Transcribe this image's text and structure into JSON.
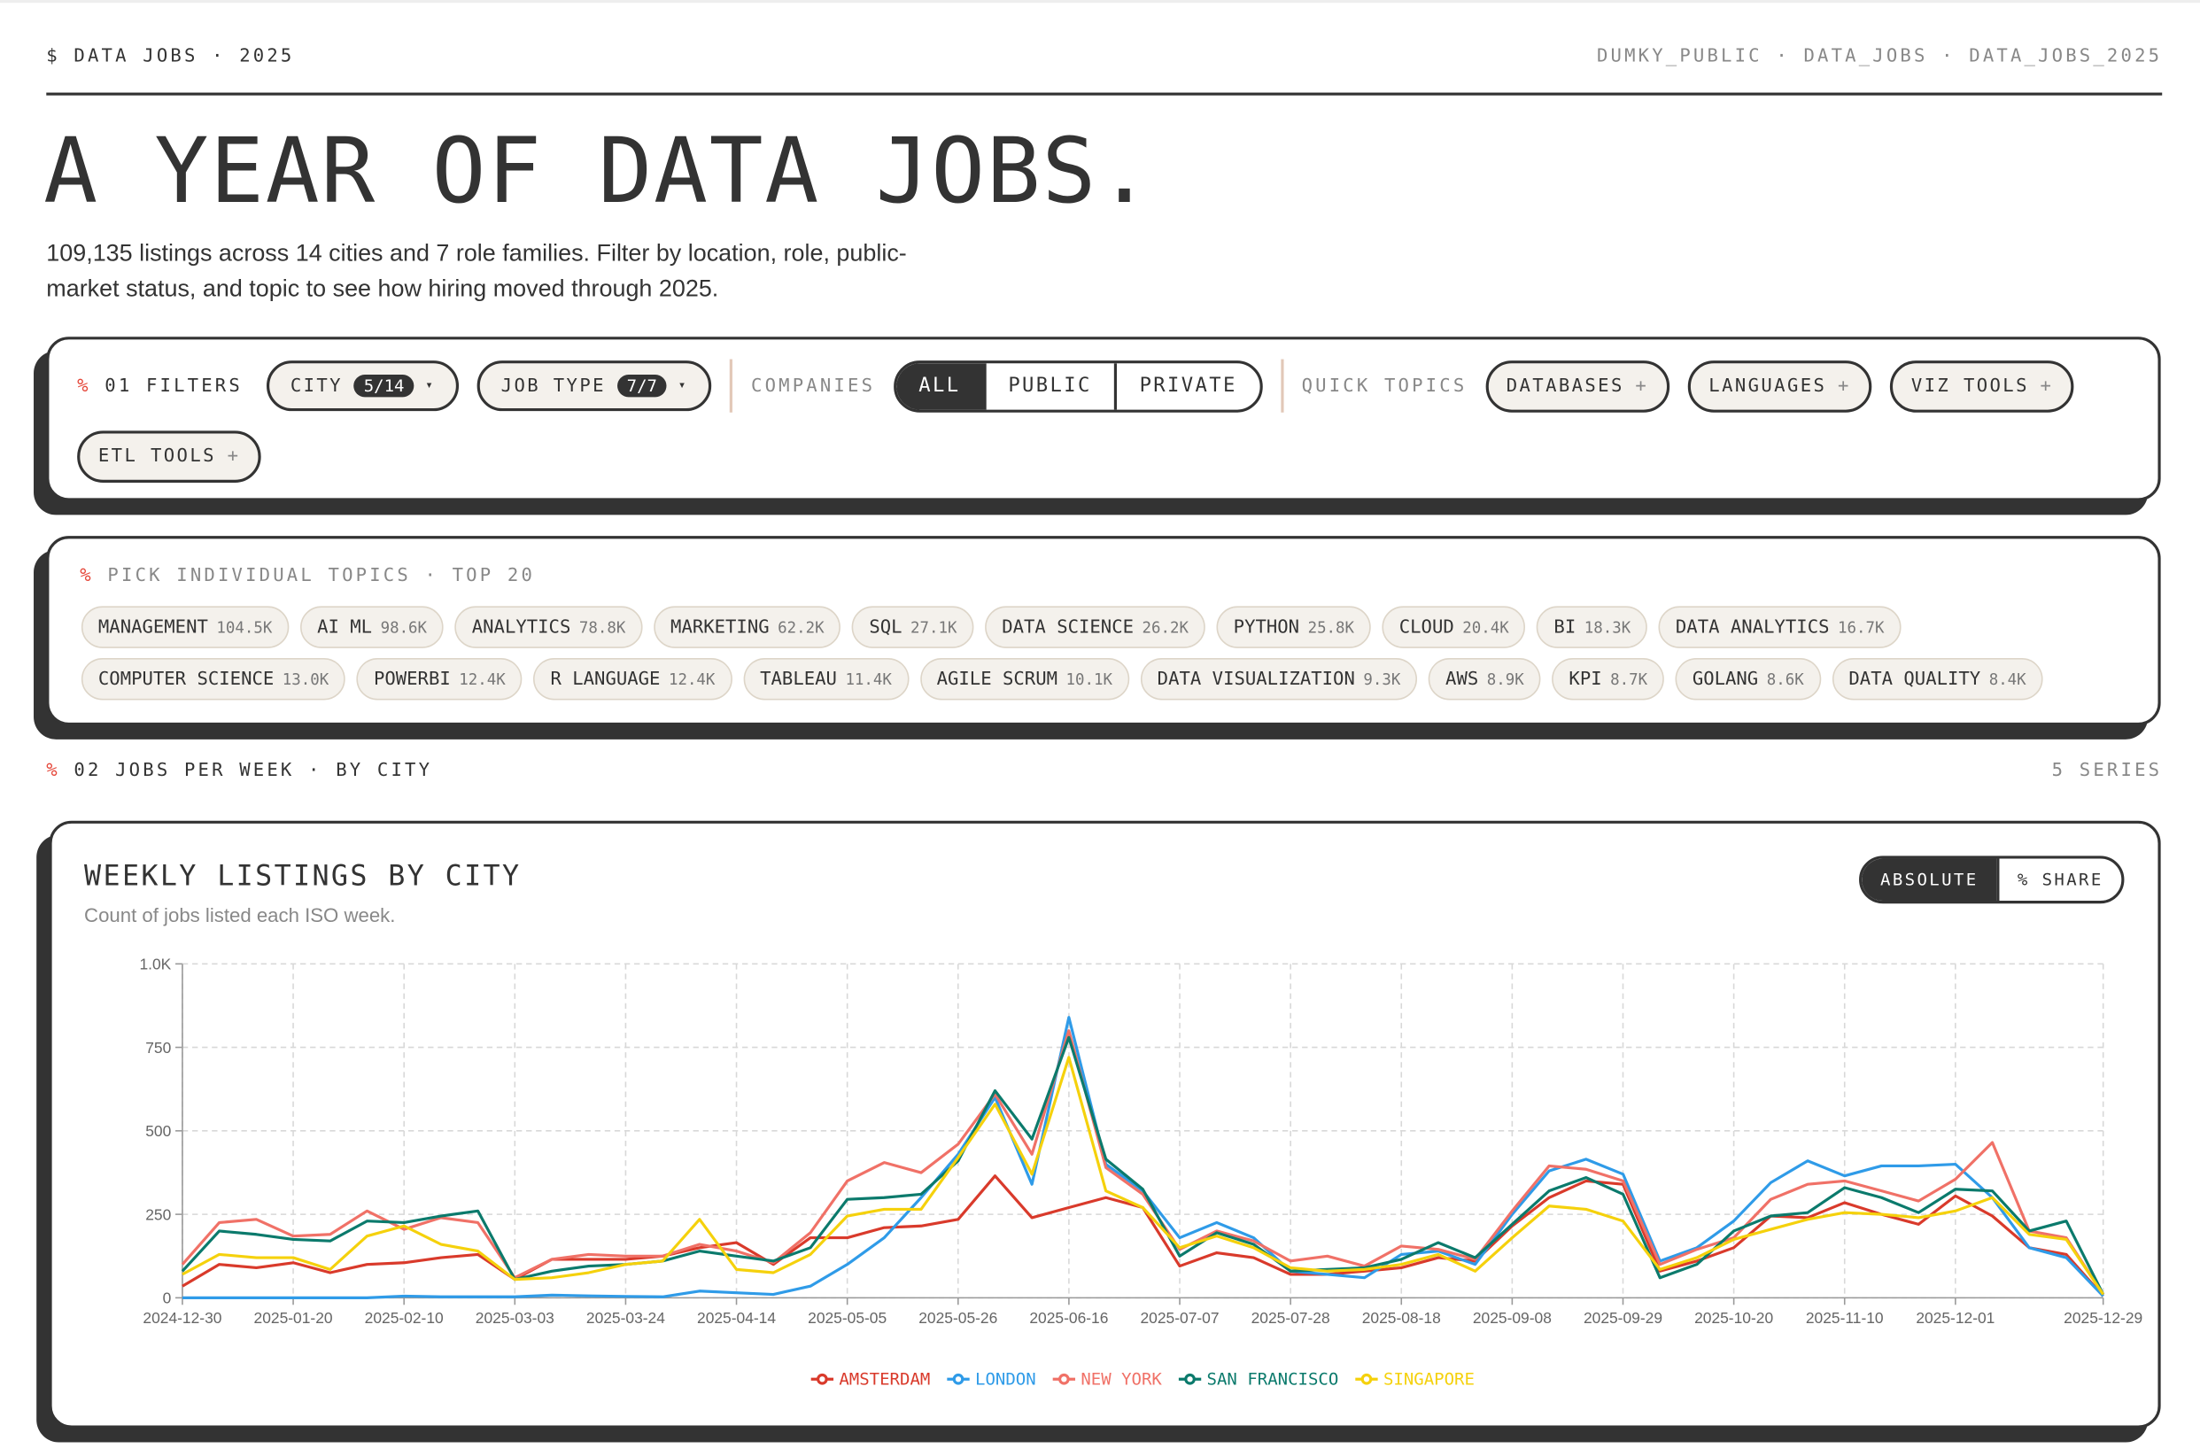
{
  "header": {
    "left": "$ DATA JOBS · 2025",
    "right": "DUMKY_PUBLIC · DATA_JOBS · DATA_JOBS_2025",
    "title": "A YEAR OF DATA JOBS.",
    "subtitle": "109,135 listings across 14 cities and 7 role families. Filter by location, role, public-market status, and topic to see how hiring moved through 2025."
  },
  "marker": "%",
  "add_icon": "+",
  "dropdown_icon": "▾",
  "filters": {
    "label": "01 FILTERS",
    "city": {
      "label": "CITY",
      "badge": "5/14"
    },
    "job_type": {
      "label": "JOB TYPE",
      "badge": "7/7"
    },
    "companies_label": "COMPANIES",
    "companies": [
      "ALL",
      "PUBLIC",
      "PRIVATE"
    ],
    "quick_topics_label": "QUICK TOPICS",
    "quick_topics": [
      "DATABASES",
      "LANGUAGES",
      "VIZ TOOLS",
      "ETL TOOLS"
    ]
  },
  "topics": {
    "label": "PICK INDIVIDUAL TOPICS · TOP 20",
    "items": [
      {
        "name": "MANAGEMENT",
        "count": "104.5K"
      },
      {
        "name": "AI ML",
        "count": "98.6K"
      },
      {
        "name": "ANALYTICS",
        "count": "78.8K"
      },
      {
        "name": "MARKETING",
        "count": "62.2K"
      },
      {
        "name": "SQL",
        "count": "27.1K"
      },
      {
        "name": "DATA SCIENCE",
        "count": "26.2K"
      },
      {
        "name": "PYTHON",
        "count": "25.8K"
      },
      {
        "name": "CLOUD",
        "count": "20.4K"
      },
      {
        "name": "BI",
        "count": "18.3K"
      },
      {
        "name": "DATA ANALYTICS",
        "count": "16.7K"
      },
      {
        "name": "COMPUTER SCIENCE",
        "count": "13.0K"
      },
      {
        "name": "POWERBI",
        "count": "12.4K"
      },
      {
        "name": "R LANGUAGE",
        "count": "12.4K"
      },
      {
        "name": "TABLEAU",
        "count": "11.4K"
      },
      {
        "name": "AGILE SCRUM",
        "count": "10.1K"
      },
      {
        "name": "DATA VISUALIZATION",
        "count": "9.3K"
      },
      {
        "name": "AWS",
        "count": "8.9K"
      },
      {
        "name": "KPI",
        "count": "8.7K"
      },
      {
        "name": "GOLANG",
        "count": "8.6K"
      },
      {
        "name": "DATA QUALITY",
        "count": "8.4K"
      }
    ]
  },
  "section": {
    "label": "02 JOBS PER WEEK · BY CITY",
    "right": "5 SERIES"
  },
  "toggle": [
    "ABSOLUTE",
    "% SHARE"
  ],
  "chart_data": {
    "type": "line",
    "title": "WEEKLY LISTINGS BY CITY",
    "subtitle": "Count of jobs listed each ISO week.",
    "x": [
      "2024-12-30",
      "2025-01-06",
      "2025-01-13",
      "2025-01-20",
      "2025-01-27",
      "2025-02-03",
      "2025-02-10",
      "2025-02-17",
      "2025-02-24",
      "2025-03-03",
      "2025-03-10",
      "2025-03-17",
      "2025-03-24",
      "2025-03-31",
      "2025-04-07",
      "2025-04-14",
      "2025-04-21",
      "2025-04-28",
      "2025-05-05",
      "2025-05-12",
      "2025-05-19",
      "2025-05-26",
      "2025-06-02",
      "2025-06-09",
      "2025-06-16",
      "2025-06-23",
      "2025-06-30",
      "2025-07-07",
      "2025-07-14",
      "2025-07-21",
      "2025-07-28",
      "2025-08-04",
      "2025-08-11",
      "2025-08-18",
      "2025-08-25",
      "2025-09-01",
      "2025-09-08",
      "2025-09-15",
      "2025-09-22",
      "2025-09-29",
      "2025-10-06",
      "2025-10-13",
      "2025-10-20",
      "2025-10-27",
      "2025-11-03",
      "2025-11-10",
      "2025-11-17",
      "2025-11-24",
      "2025-12-01",
      "2025-12-08",
      "2025-12-15",
      "2025-12-22",
      "2025-12-29"
    ],
    "xlim": [
      "2024-12-30",
      "2025-12-29"
    ],
    "xticks": [
      "2024-12-30",
      "2025-01-20",
      "2025-02-10",
      "2025-03-03",
      "2025-03-24",
      "2025-04-14",
      "2025-05-05",
      "2025-05-26",
      "2025-06-16",
      "2025-07-07",
      "2025-07-28",
      "2025-08-18",
      "2025-09-08",
      "2025-09-29",
      "2025-10-20",
      "2025-11-10",
      "2025-12-01",
      "2025-12-29"
    ],
    "ylim": [
      0,
      1000
    ],
    "yticks": [
      0,
      250,
      500,
      750,
      {
        "value": 1000,
        "label": "1.0K"
      }
    ],
    "grid": true,
    "series": [
      {
        "name": "AMSTERDAM",
        "color": "#d93a2b",
        "values": [
          35,
          100,
          90,
          105,
          75,
          100,
          105,
          120,
          130,
          55,
          115,
          115,
          115,
          125,
          150,
          165,
          100,
          180,
          180,
          210,
          215,
          235,
          365,
          240,
          270,
          300,
          270,
          95,
          135,
          120,
          70,
          70,
          80,
          90,
          120,
          110,
          215,
          300,
          350,
          340,
          80,
          110,
          150,
          245,
          240,
          285,
          250,
          220,
          305,
          245,
          150,
          130,
          5
        ]
      },
      {
        "name": "LONDON",
        "color": "#2f9be8",
        "values": [
          0,
          0,
          0,
          0,
          0,
          0,
          5,
          3,
          3,
          3,
          8,
          6,
          4,
          3,
          20,
          15,
          10,
          35,
          100,
          180,
          300,
          430,
          600,
          340,
          840,
          400,
          320,
          180,
          225,
          180,
          80,
          70,
          60,
          130,
          140,
          100,
          250,
          380,
          415,
          370,
          110,
          150,
          230,
          345,
          410,
          365,
          395,
          395,
          400,
          300,
          150,
          120,
          5
        ]
      },
      {
        "name": "NEW YORK",
        "color": "#f07167",
        "values": [
          100,
          225,
          235,
          185,
          190,
          260,
          205,
          240,
          225,
          60,
          115,
          130,
          125,
          125,
          160,
          140,
          105,
          195,
          350,
          405,
          375,
          460,
          610,
          430,
          800,
          390,
          310,
          145,
          200,
          170,
          110,
          125,
          95,
          155,
          145,
          115,
          260,
          395,
          385,
          350,
          100,
          145,
          180,
          295,
          340,
          350,
          320,
          290,
          355,
          465,
          200,
          180,
          10
        ]
      },
      {
        "name": "SAN FRANCISCO",
        "color": "#0b7a6c",
        "values": [
          80,
          200,
          190,
          175,
          170,
          230,
          225,
          245,
          260,
          55,
          80,
          95,
          100,
          110,
          140,
          125,
          110,
          150,
          295,
          300,
          310,
          410,
          620,
          475,
          780,
          415,
          325,
          125,
          195,
          160,
          80,
          85,
          90,
          115,
          165,
          120,
          220,
          320,
          360,
          310,
          60,
          100,
          200,
          245,
          255,
          330,
          300,
          255,
          325,
          320,
          200,
          230,
          10
        ]
      },
      {
        "name": "SINGAPORE",
        "color": "#f5d10c",
        "values": [
          70,
          130,
          120,
          120,
          85,
          185,
          215,
          160,
          140,
          55,
          60,
          75,
          100,
          110,
          235,
          85,
          75,
          130,
          245,
          265,
          265,
          420,
          580,
          370,
          720,
          320,
          270,
          150,
          185,
          150,
          90,
          80,
          85,
          100,
          130,
          80,
          180,
          275,
          265,
          230,
          85,
          120,
          175,
          205,
          235,
          255,
          250,
          240,
          260,
          300,
          190,
          175,
          10
        ]
      }
    ]
  }
}
